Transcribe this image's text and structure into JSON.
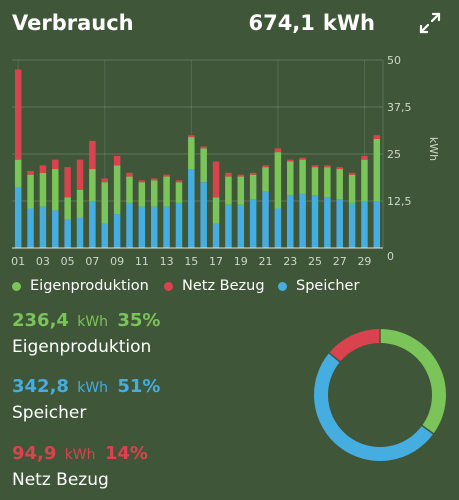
{
  "header": {
    "title": "Verbrauch",
    "total_value": "674,1",
    "total_unit": "kWh"
  },
  "colors": {
    "background": "#3f5638",
    "green": "#7ac45a",
    "red": "#d8434e",
    "blue": "#45ade0"
  },
  "chart_data": [
    {
      "type": "bar",
      "stacked": true,
      "categories": [
        "01",
        "02",
        "03",
        "04",
        "05",
        "06",
        "07",
        "08",
        "09",
        "10",
        "11",
        "12",
        "13",
        "14",
        "15",
        "16",
        "17",
        "18",
        "19",
        "20",
        "21",
        "22",
        "23",
        "24",
        "25",
        "26",
        "27",
        "28",
        "29",
        "30"
      ],
      "x_tick_labels": [
        "01",
        "03",
        "05",
        "07",
        "09",
        "11",
        "13",
        "15",
        "17",
        "19",
        "21",
        "23",
        "25",
        "27",
        "29"
      ],
      "ylabel": "kWh",
      "y_tick_labels": [
        "50",
        "37,5",
        "25",
        "12,5",
        "0"
      ],
      "ylim": [
        0,
        50
      ],
      "grid": true,
      "series": [
        {
          "name": "Speicher",
          "color": "#45ade0",
          "values": [
            16,
            10.5,
            11,
            10,
            7.5,
            8,
            12.5,
            6.5,
            9,
            12,
            11,
            11,
            11,
            12,
            21,
            17.5,
            6.5,
            11.5,
            11.5,
            13,
            15,
            10.5,
            14,
            14.5,
            14,
            13.5,
            13,
            12,
            12.5,
            12.5
          ]
        },
        {
          "name": "Eigenproduktion",
          "color": "#7ac45a",
          "values": [
            7.5,
            9,
            9,
            11,
            6,
            7.5,
            8.5,
            11,
            13,
            7,
            6.5,
            7,
            8,
            5.5,
            8.5,
            9,
            7,
            7.5,
            7.5,
            6.5,
            6.5,
            15,
            9,
            9,
            7.5,
            8,
            8,
            7.5,
            11,
            16.5
          ]
        },
        {
          "name": "Netz Bezug",
          "color": "#d8434e",
          "values": [
            24,
            1,
            2,
            2.5,
            8,
            8,
            7.5,
            1,
            2.5,
            1,
            0.5,
            0.5,
            0.5,
            0.5,
            0.5,
            0.5,
            9.5,
            1,
            0.5,
            0.5,
            0.5,
            1,
            0.5,
            0.5,
            0.5,
            0.5,
            0.5,
            0.5,
            1,
            1
          ]
        }
      ]
    },
    {
      "type": "pie",
      "donut": true,
      "labels": [
        "Eigenproduktion",
        "Speicher",
        "Netz Bezug"
      ],
      "values": [
        35,
        51,
        14
      ],
      "colors": [
        "#7ac45a",
        "#45ade0",
        "#d8434e"
      ]
    }
  ],
  "legend": [
    {
      "label": "Eigenproduktion",
      "color": "#7ac45a"
    },
    {
      "label": "Netz Bezug",
      "color": "#d8434e"
    },
    {
      "label": "Speicher",
      "color": "#45ade0"
    }
  ],
  "stats": [
    {
      "value": "236,4",
      "unit": "kWh",
      "percent": "35%",
      "label": "Eigenproduktion",
      "color": "#7ac45a"
    },
    {
      "value": "342,8",
      "unit": "kWh",
      "percent": "51%",
      "label": "Speicher",
      "color": "#45ade0"
    },
    {
      "value": "94,9",
      "unit": "kWh",
      "percent": "14%",
      "label": "Netz Bezug",
      "color": "#d8434e"
    }
  ]
}
